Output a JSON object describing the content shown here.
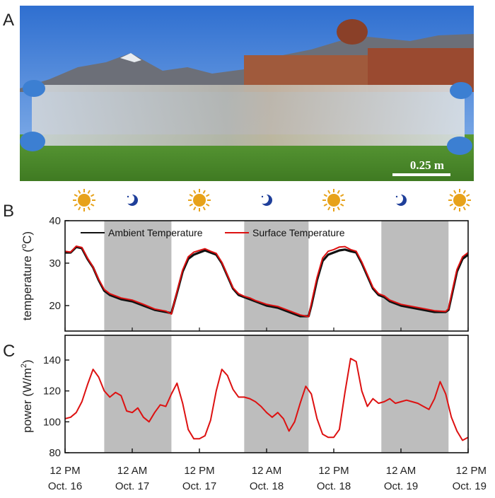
{
  "panels": {
    "a": "A",
    "b": "B",
    "c": "C"
  },
  "photo": {
    "scale_bar_label": "0.25 m",
    "sky_color": "#3d7fd6",
    "grass_color": "#4f8b2e",
    "film_color": "#d8dde2"
  },
  "icons": [
    "sun-icon",
    "moon-icon",
    "sun-icon",
    "moon-icon",
    "sun-icon",
    "moon-icon",
    "sun-icon"
  ],
  "colors": {
    "ambient": "#111111",
    "surface": "#dd1111",
    "night_band": "#bdbdbd",
    "sun": "#e7a21a",
    "moon": "#1f3f9a"
  },
  "x_ticks": [
    {
      "hour": 0,
      "line1": "12 PM",
      "line2": "Oct. 16"
    },
    {
      "hour": 12,
      "line1": "12 AM",
      "line2": "Oct. 17"
    },
    {
      "hour": 24,
      "line1": "12 PM",
      "line2": "Oct. 17"
    },
    {
      "hour": 36,
      "line1": "12 AM",
      "line2": "Oct. 18"
    },
    {
      "hour": 48,
      "line1": "12 PM",
      "line2": "Oct. 18"
    },
    {
      "hour": 60,
      "line1": "12 AM",
      "line2": "Oct. 19"
    },
    {
      "hour": 72,
      "line1": "12 PM",
      "line2": "Oct. 19"
    }
  ],
  "chart_data": [
    {
      "type": "line",
      "panel": "B",
      "ylabel_main": "temperature (",
      "ylabel_sup": "o",
      "ylabel_end": "C)",
      "ylim": [
        14,
        40
      ],
      "y_ticks": [
        20,
        30,
        40
      ],
      "xlim": [
        0,
        72
      ],
      "night_bands": [
        [
          7,
          19
        ],
        [
          32,
          43.5
        ],
        [
          56.5,
          68.5
        ]
      ],
      "legend": [
        "Ambient Temperature",
        "Surface Temperature"
      ],
      "series": [
        {
          "name": "Ambient Temperature",
          "x": [
            0,
            1,
            2,
            3,
            4,
            5,
            6,
            7,
            8,
            9,
            10,
            12,
            14,
            16,
            18,
            19,
            20,
            21,
            22,
            23,
            24,
            25,
            26,
            27,
            28,
            29,
            30,
            31,
            32,
            33,
            34,
            36,
            38,
            40,
            42,
            43.5,
            44,
            45,
            46,
            47,
            48,
            49,
            50,
            51,
            52,
            53,
            54,
            55,
            56,
            57,
            58,
            60,
            62,
            64,
            66,
            68,
            68.5,
            69,
            70,
            71,
            72
          ],
          "values": [
            32.5,
            32.5,
            33.8,
            33.5,
            31,
            29,
            26,
            23.5,
            22.5,
            22,
            21.5,
            21,
            20,
            19,
            18.5,
            18.2,
            23,
            28,
            31,
            32,
            32.5,
            33,
            32.5,
            32,
            30,
            27,
            24,
            22.5,
            22,
            21.5,
            21,
            20,
            19.5,
            18.5,
            17.5,
            17.5,
            20,
            26,
            30.5,
            32,
            32.5,
            33,
            33.2,
            32.8,
            32.5,
            30,
            27,
            24,
            22.5,
            22,
            21,
            20,
            19.5,
            19,
            18.5,
            18.5,
            19,
            22,
            28,
            31,
            32
          ]
        },
        {
          "name": "Surface Temperature",
          "x": [
            0,
            1,
            2,
            3,
            4,
            5,
            6,
            7,
            8,
            9,
            10,
            12,
            14,
            16,
            18,
            19,
            20,
            21,
            22,
            23,
            24,
            25,
            26,
            27,
            28,
            29,
            30,
            31,
            32,
            33,
            34,
            36,
            38,
            40,
            42,
            43.5,
            44,
            45,
            46,
            47,
            48,
            49,
            50,
            51,
            52,
            53,
            54,
            55,
            56,
            57,
            58,
            60,
            62,
            64,
            66,
            68,
            68.5,
            69,
            70,
            71,
            72
          ],
          "values": [
            32.8,
            32.6,
            34.0,
            33.7,
            31.2,
            29.1,
            26.2,
            23.8,
            22.8,
            22.3,
            21.8,
            21.3,
            20.3,
            19.2,
            18.7,
            18.0,
            23.3,
            28.4,
            31.5,
            32.6,
            33.0,
            33.4,
            32.8,
            32.3,
            30.2,
            27.2,
            24.2,
            22.8,
            22.2,
            21.8,
            21.2,
            20.3,
            19.8,
            18.8,
            17.8,
            17.4,
            20.5,
            26.6,
            31.2,
            32.8,
            33.2,
            33.8,
            33.9,
            33.2,
            32.8,
            30.3,
            27.3,
            24.3,
            22.8,
            22.3,
            21.3,
            20.3,
            19.8,
            19.3,
            18.8,
            18.6,
            19.3,
            22.5,
            28.5,
            31.5,
            32.5
          ]
        }
      ]
    },
    {
      "type": "line",
      "panel": "C",
      "ylabel_main": "power (W/m",
      "ylabel_sup": "2",
      "ylabel_end": ")",
      "ylim": [
        80,
        156
      ],
      "y_ticks": [
        80,
        100,
        120,
        140
      ],
      "xlim": [
        0,
        72
      ],
      "night_bands": [
        [
          7,
          19
        ],
        [
          32,
          43.5
        ],
        [
          56.5,
          68.5
        ]
      ],
      "series": [
        {
          "name": "",
          "x": [
            0,
            1,
            2,
            3,
            4,
            5,
            6,
            7,
            8,
            9,
            10,
            11,
            12,
            13,
            14,
            15,
            16,
            17,
            18,
            19,
            20,
            21,
            22,
            23,
            24,
            25,
            26,
            27,
            28,
            29,
            30,
            31,
            32,
            33,
            34,
            35,
            36,
            37,
            38,
            39,
            40,
            41,
            42,
            43,
            44,
            45,
            46,
            47,
            48,
            49,
            50,
            51,
            52,
            53,
            54,
            55,
            56,
            57,
            58,
            59,
            60,
            61,
            62,
            63,
            64,
            65,
            66,
            67,
            68,
            69,
            70,
            71,
            72
          ],
          "values": [
            102,
            103,
            106,
            113,
            124,
            134,
            129,
            120,
            116,
            119,
            117,
            107,
            106,
            109,
            103,
            100,
            106,
            111,
            110,
            118,
            125,
            112,
            95,
            89,
            89,
            91,
            101,
            120,
            134,
            130,
            121,
            116,
            116,
            115,
            113,
            110,
            106,
            103,
            106,
            102,
            94,
            100,
            112,
            123,
            118,
            102,
            92,
            90,
            90,
            95,
            119,
            141,
            139,
            120,
            110,
            115,
            112,
            113,
            115,
            112,
            113,
            114,
            113,
            112,
            110,
            108,
            115,
            126,
            118,
            103,
            94,
            88,
            90
          ]
        }
      ]
    }
  ]
}
